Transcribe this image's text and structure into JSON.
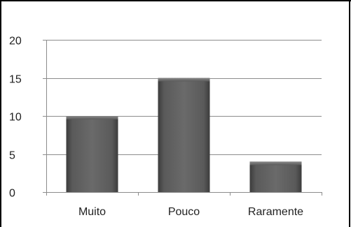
{
  "chart_data": {
    "type": "bar",
    "categories": [
      "Muito",
      "Pouco",
      "Raramente"
    ],
    "values": [
      10,
      15,
      4
    ],
    "title": "",
    "xlabel": "",
    "ylabel": "",
    "ylim": [
      0,
      20
    ],
    "yticks": [
      0,
      5,
      10,
      15,
      20
    ],
    "grid": true,
    "legend": "none",
    "colors": {
      "bar": "#5a5a5a",
      "bar_dark": "#3f3f3f",
      "bar_light": "#7a7a7a",
      "grid": "#8c8c8c",
      "axis": "#8c8c8c"
    }
  }
}
